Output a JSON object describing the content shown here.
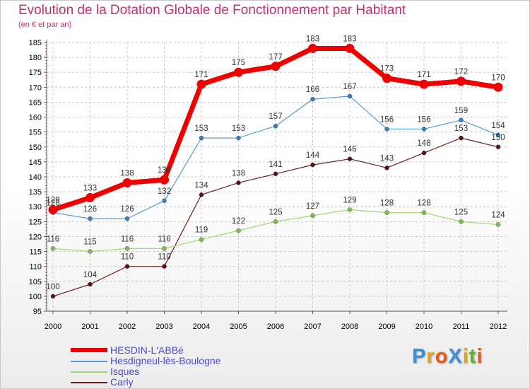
{
  "title": "Evolution de la Dotation Globale de Fonctionnement par Habitant",
  "subtitle": "(en € et par an)",
  "logo": {
    "text": "ProXiti",
    "letter_colors": [
      "#3a8fd6",
      "#e0a020",
      "#e05a20",
      "#3a8fd6",
      "#e0a020",
      "#5ab030",
      "#e05a20"
    ]
  },
  "colors": {
    "title": "#c0306e",
    "axis_text": "#000000",
    "legend_text": "#4a4ad6",
    "value_label": "#333333"
  },
  "chart_data": {
    "type": "line",
    "title": "Evolution de la Dotation Globale de Fonctionnement par Habitant",
    "subtitle": "(en € et par an)",
    "xlabel": "",
    "ylabel": "",
    "ylim": [
      95,
      185
    ],
    "yticks": [
      95,
      100,
      105,
      110,
      115,
      120,
      125,
      130,
      135,
      140,
      145,
      150,
      155,
      160,
      165,
      170,
      175,
      180,
      185
    ],
    "x": [
      "2000",
      "2001",
      "2002",
      "2003",
      "2004",
      "2005",
      "2006",
      "2007",
      "2008",
      "2009",
      "2010",
      "2011",
      "2012"
    ],
    "legend_position": "bottom-left",
    "series": [
      {
        "name": "Carly",
        "color": "#6b1f1f",
        "marker": "#5a1010",
        "width": 1.2,
        "values": [
          100,
          104,
          110,
          110,
          134,
          138,
          141,
          144,
          146,
          143,
          148,
          153,
          150
        ]
      },
      {
        "name": "Isques",
        "color": "#9ad96a",
        "marker": "#7cc04a",
        "width": 1.2,
        "values": [
          116,
          115,
          116,
          116,
          119,
          122,
          125,
          127,
          129,
          128,
          128,
          125,
          124
        ]
      },
      {
        "name": "Hesdigneul-lès-Boulogne",
        "color": "#5b9bd0",
        "marker": "#3a7fc0",
        "width": 1.2,
        "values": [
          128,
          126,
          126,
          132,
          153,
          153,
          157,
          166,
          167,
          156,
          156,
          159,
          154
        ]
      },
      {
        "name": "HESDIN-L'ABBé",
        "color": "#ee0000",
        "marker": "#ee0000",
        "width": 7,
        "values": [
          129,
          133,
          138,
          139,
          171,
          175,
          177,
          183,
          183,
          173,
          171,
          172,
          170
        ]
      }
    ]
  }
}
